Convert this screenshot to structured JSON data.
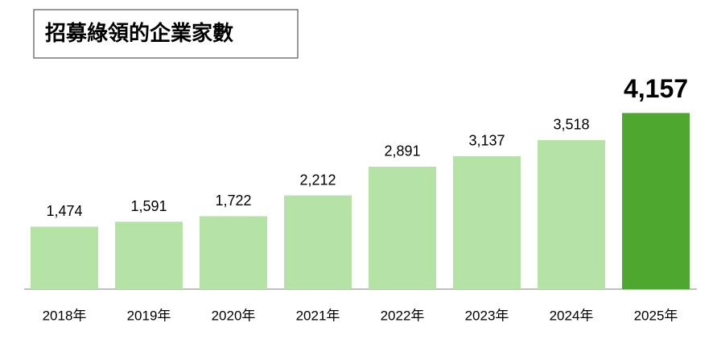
{
  "chart_data": {
    "type": "bar",
    "title": "招募綠領的企業家數",
    "categories": [
      "2018年",
      "2019年",
      "2020年",
      "2021年",
      "2022年",
      "2023年",
      "2024年",
      "2025年"
    ],
    "values": [
      1474,
      1591,
      1722,
      2212,
      2891,
      3137,
      3518,
      4157
    ],
    "value_labels": [
      "1,474",
      "1,591",
      "1,722",
      "2,212",
      "2,891",
      "3,137",
      "3,518",
      "4,157"
    ],
    "colors": [
      "#b5e3a5",
      "#b5e3a5",
      "#b5e3a5",
      "#b5e3a5",
      "#b5e3a5",
      "#b5e3a5",
      "#b5e3a5",
      "#4ea72e"
    ],
    "ylim": [
      0,
      5000
    ]
  }
}
